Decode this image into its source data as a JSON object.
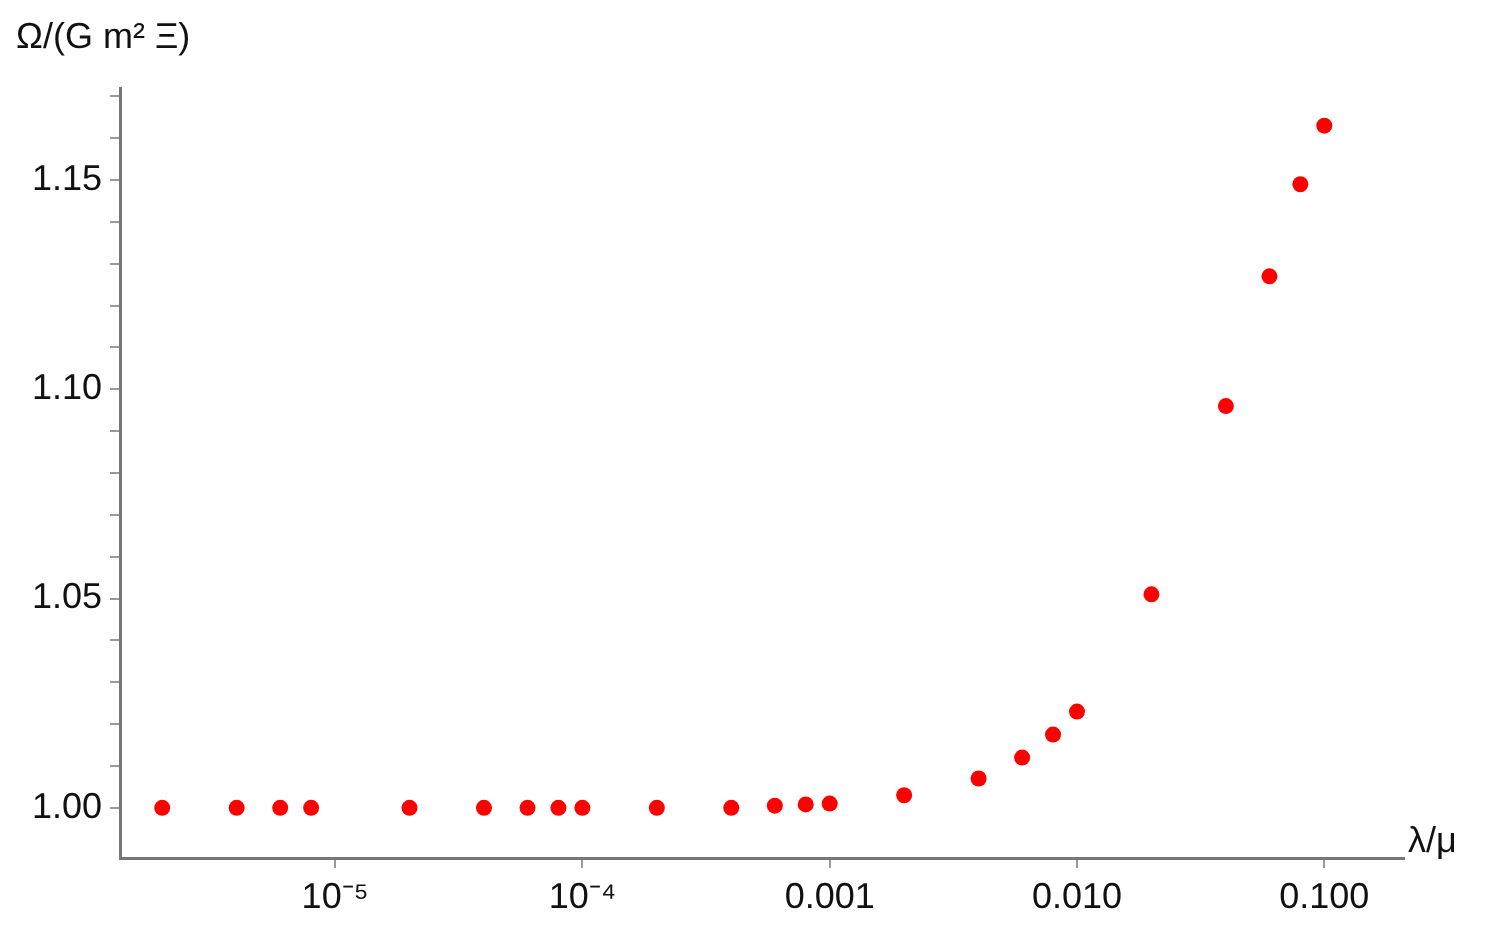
{
  "chart_data": {
    "type": "scatter",
    "xlabel": "λ/μ",
    "ylabel": "Ω/(G m² Ξ)",
    "log": "x",
    "grid": false,
    "legend": false,
    "marker": "circle",
    "x": [
      2e-06,
      4e-06,
      6e-06,
      8e-06,
      2e-05,
      4e-05,
      6e-05,
      8e-05,
      0.0001,
      0.0002,
      0.0004,
      0.0006,
      0.0008,
      0.001,
      0.002,
      0.004,
      0.006,
      0.008,
      0.01,
      0.02,
      0.04,
      0.06,
      0.08,
      0.1
    ],
    "series": [
      {
        "color": "#ff0000",
        "values": [
          1.0,
          1.0,
          1.0,
          1.0,
          1.0,
          1.0,
          1.0,
          1.0,
          1.0,
          1.0,
          1.0,
          1.0005,
          1.0008,
          1.001,
          1.003,
          1.007,
          1.012,
          1.0175,
          1.023,
          1.051,
          1.096,
          1.127,
          1.149,
          1.163
        ]
      }
    ],
    "xlim": [
      1.35e-06,
      0.21
    ],
    "xticks": [
      {
        "value": 1e-05,
        "label": "10⁻⁵"
      },
      {
        "value": 0.0001,
        "label": "10⁻⁴"
      },
      {
        "value": 0.001,
        "label": "0.001"
      },
      {
        "value": 0.01,
        "label": "0.010"
      },
      {
        "value": 0.1,
        "label": "0.100"
      }
    ],
    "ylim": [
      0.988,
      1.172
    ],
    "yticks": [
      {
        "value": 1.0,
        "label": "1.00"
      },
      {
        "value": 1.01,
        "label": null
      },
      {
        "value": 1.02,
        "label": null
      },
      {
        "value": 1.03,
        "label": null
      },
      {
        "value": 1.04,
        "label": null
      },
      {
        "value": 1.05,
        "label": "1.05"
      },
      {
        "value": 1.06,
        "label": null
      },
      {
        "value": 1.07,
        "label": null
      },
      {
        "value": 1.08,
        "label": null
      },
      {
        "value": 1.09,
        "label": null
      },
      {
        "value": 1.1,
        "label": "1.10"
      },
      {
        "value": 1.11,
        "label": null
      },
      {
        "value": 1.12,
        "label": null
      },
      {
        "value": 1.13,
        "label": null
      },
      {
        "value": 1.14,
        "label": null
      },
      {
        "value": 1.15,
        "label": "1.15"
      },
      {
        "value": 1.16,
        "label": null
      },
      {
        "value": 1.17,
        "label": null
      }
    ]
  }
}
